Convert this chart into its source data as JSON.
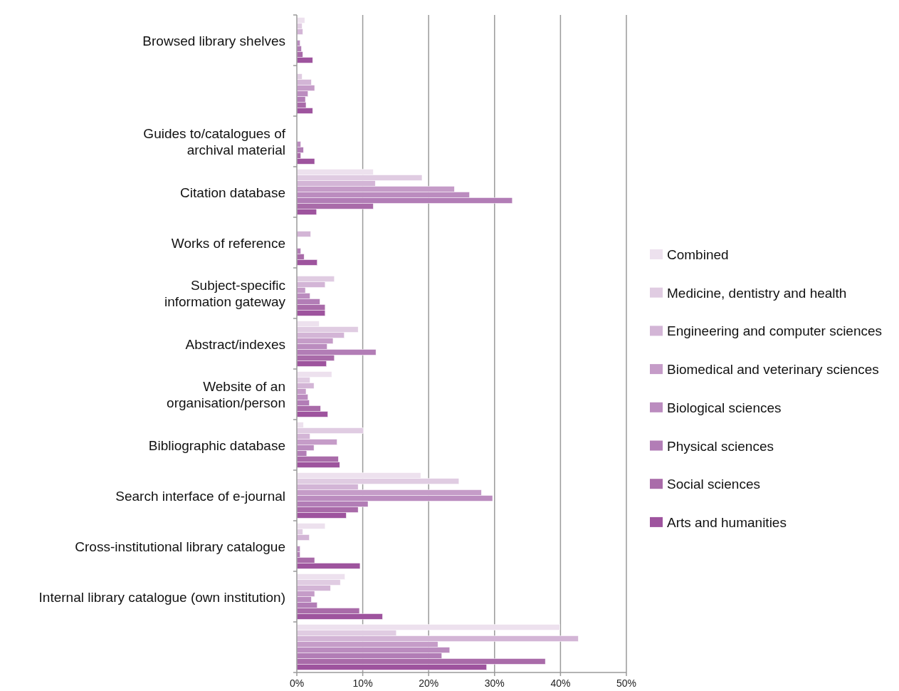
{
  "chart_data": {
    "type": "bar",
    "orientation": "horizontal",
    "categories": [
      "Browsed library shelves",
      null,
      "Guides to/catalogues of\narchival material",
      "Citation database",
      "Works of reference",
      "Subject-specific\ninformation gateway",
      "Abstract/indexes",
      "Website of an\norganisation/person",
      "Bibliographic database",
      "Search interface of e-journal",
      "Cross-institutional library catalogue",
      "Internal library catalogue (own institution)",
      null
    ],
    "series": [
      {
        "name": "Combined",
        "color": "#ede1ee",
        "values": [
          1.2,
          0,
          0,
          11.6,
          0,
          0,
          3.4,
          5.3,
          1.0,
          18.8,
          4.3,
          7.3,
          39.9
        ]
      },
      {
        "name": "Medicine, dentistry and health",
        "color": "#e0cce2",
        "values": [
          0.8,
          0.8,
          0,
          19.0,
          0,
          5.7,
          9.3,
          2.0,
          10.1,
          24.6,
          0.9,
          6.6,
          15.1
        ]
      },
      {
        "name": "Engineering and computer sciences",
        "color": "#d3b5d6",
        "values": [
          0.9,
          2.2,
          0,
          11.9,
          2.1,
          4.3,
          7.2,
          2.6,
          2.0,
          9.3,
          1.9,
          5.1,
          42.7
        ]
      },
      {
        "name": "Biomedical and veterinary sciences",
        "color": "#c59cc8",
        "values": [
          0,
          2.7,
          0,
          23.9,
          0,
          1.3,
          5.5,
          1.4,
          6.1,
          28.0,
          0,
          2.7,
          21.4
        ]
      },
      {
        "name": "Biological sciences",
        "color": "#bb8cbf",
        "values": [
          0.5,
          1.7,
          0.6,
          26.2,
          0,
          2.0,
          4.6,
          1.7,
          2.6,
          29.7,
          0.5,
          2.2,
          23.2
        ]
      },
      {
        "name": "Physical sciences",
        "color": "#b27db6",
        "values": [
          0.7,
          1.3,
          1.0,
          32.7,
          0.6,
          3.5,
          12.0,
          1.9,
          1.5,
          10.8,
          0.5,
          3.1,
          22.0
        ]
      },
      {
        "name": "Social sciences",
        "color": "#a96ba9",
        "values": [
          0.9,
          1.4,
          0.6,
          11.6,
          1.1,
          4.3,
          5.7,
          3.6,
          6.3,
          9.3,
          2.7,
          9.5,
          37.7
        ]
      },
      {
        "name": "Arts and humanities",
        "color": "#9e549e",
        "values": [
          2.4,
          2.4,
          2.7,
          3.0,
          3.1,
          4.3,
          4.5,
          4.7,
          6.5,
          7.5,
          9.6,
          13.0,
          28.8
        ]
      }
    ],
    "xlim": [
      0,
      50
    ],
    "xticks": [
      {
        "value": 0,
        "label": "0%"
      },
      {
        "value": 10,
        "label": "10%"
      },
      {
        "value": 20,
        "label": "20%"
      },
      {
        "value": 30,
        "label": "30%"
      },
      {
        "value": 40,
        "label": "40%"
      },
      {
        "value": 50,
        "label": "50%"
      }
    ],
    "grid": "x",
    "legend": "right"
  }
}
